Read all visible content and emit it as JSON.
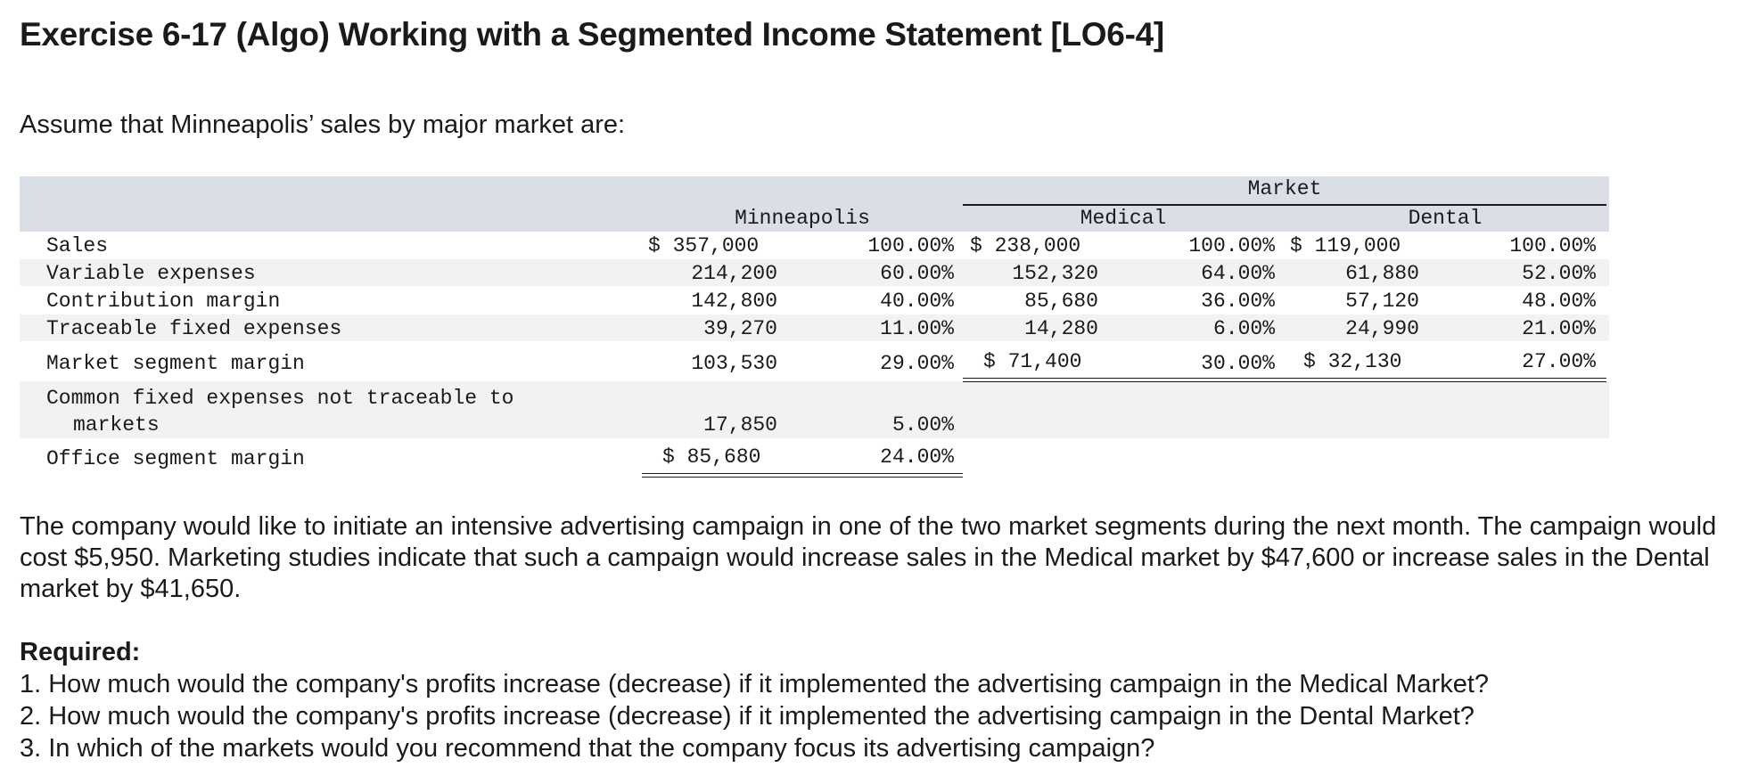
{
  "title": "Exercise 6-17 (Algo) Working with a Segmented Income Statement [LO6-4]",
  "intro": "Assume that Minneapolis’ sales by major market are:",
  "table": {
    "group_header": "Market",
    "col_minneapolis": "Minneapolis",
    "col_medical": "Medical",
    "col_dental": "Dental",
    "rows": [
      {
        "label": "Sales",
        "min_amt": "$ 357,000",
        "min_pct": "100.00%",
        "med_amt": "$ 238,000",
        "med_pct": "100.00%",
        "den_amt": "$ 119,000",
        "den_pct": "100.00%"
      },
      {
        "label": "Variable expenses",
        "min_amt": "214,200",
        "min_pct": "60.00%",
        "med_amt": "152,320",
        "med_pct": "64.00%",
        "den_amt": "61,880",
        "den_pct": "52.00%"
      },
      {
        "label": "Contribution margin",
        "min_amt": "142,800",
        "min_pct": "40.00%",
        "med_amt": "85,680",
        "med_pct": "36.00%",
        "den_amt": "57,120",
        "den_pct": "48.00%"
      },
      {
        "label": "Traceable fixed expenses",
        "min_amt": "39,270",
        "min_pct": "11.00%",
        "med_amt": "14,280",
        "med_pct": "6.00%",
        "den_amt": "24,990",
        "den_pct": "21.00%"
      },
      {
        "label": "Market segment margin",
        "min_amt": "103,530",
        "min_pct": "29.00%",
        "med_amt": "$ 71,400",
        "med_pct": "30.00%",
        "den_amt": "$ 32,130",
        "den_pct": "27.00%"
      },
      {
        "label_line1": "Common fixed expenses not traceable to",
        "label_line2": "markets",
        "min_amt": "17,850",
        "min_pct": "5.00%"
      },
      {
        "label": "Office segment margin",
        "min_amt": "$ 85,680",
        "min_pct": "24.00%"
      }
    ]
  },
  "paragraph": "The company would like to initiate an intensive advertising campaign in one of the two market segments during the next month. The campaign would cost $5,950. Marketing studies indicate that such a campaign would increase sales in the Medical market by $47,600 or increase sales in the Dental market by $41,650.",
  "required": {
    "heading": "Required:",
    "items": [
      "1. How much would the company's profits increase (decrease) if it implemented the advertising campaign in the Medical Market?",
      "2. How much would the company's profits increase (decrease) if it implemented the advertising campaign in the Dental Market?",
      "3. In which of the markets would you recommend that the company focus its advertising campaign?"
    ]
  },
  "colors": {
    "header_band": "#d9dee7",
    "stripe": "#f2f2f2",
    "text": "#1a1a1a"
  }
}
